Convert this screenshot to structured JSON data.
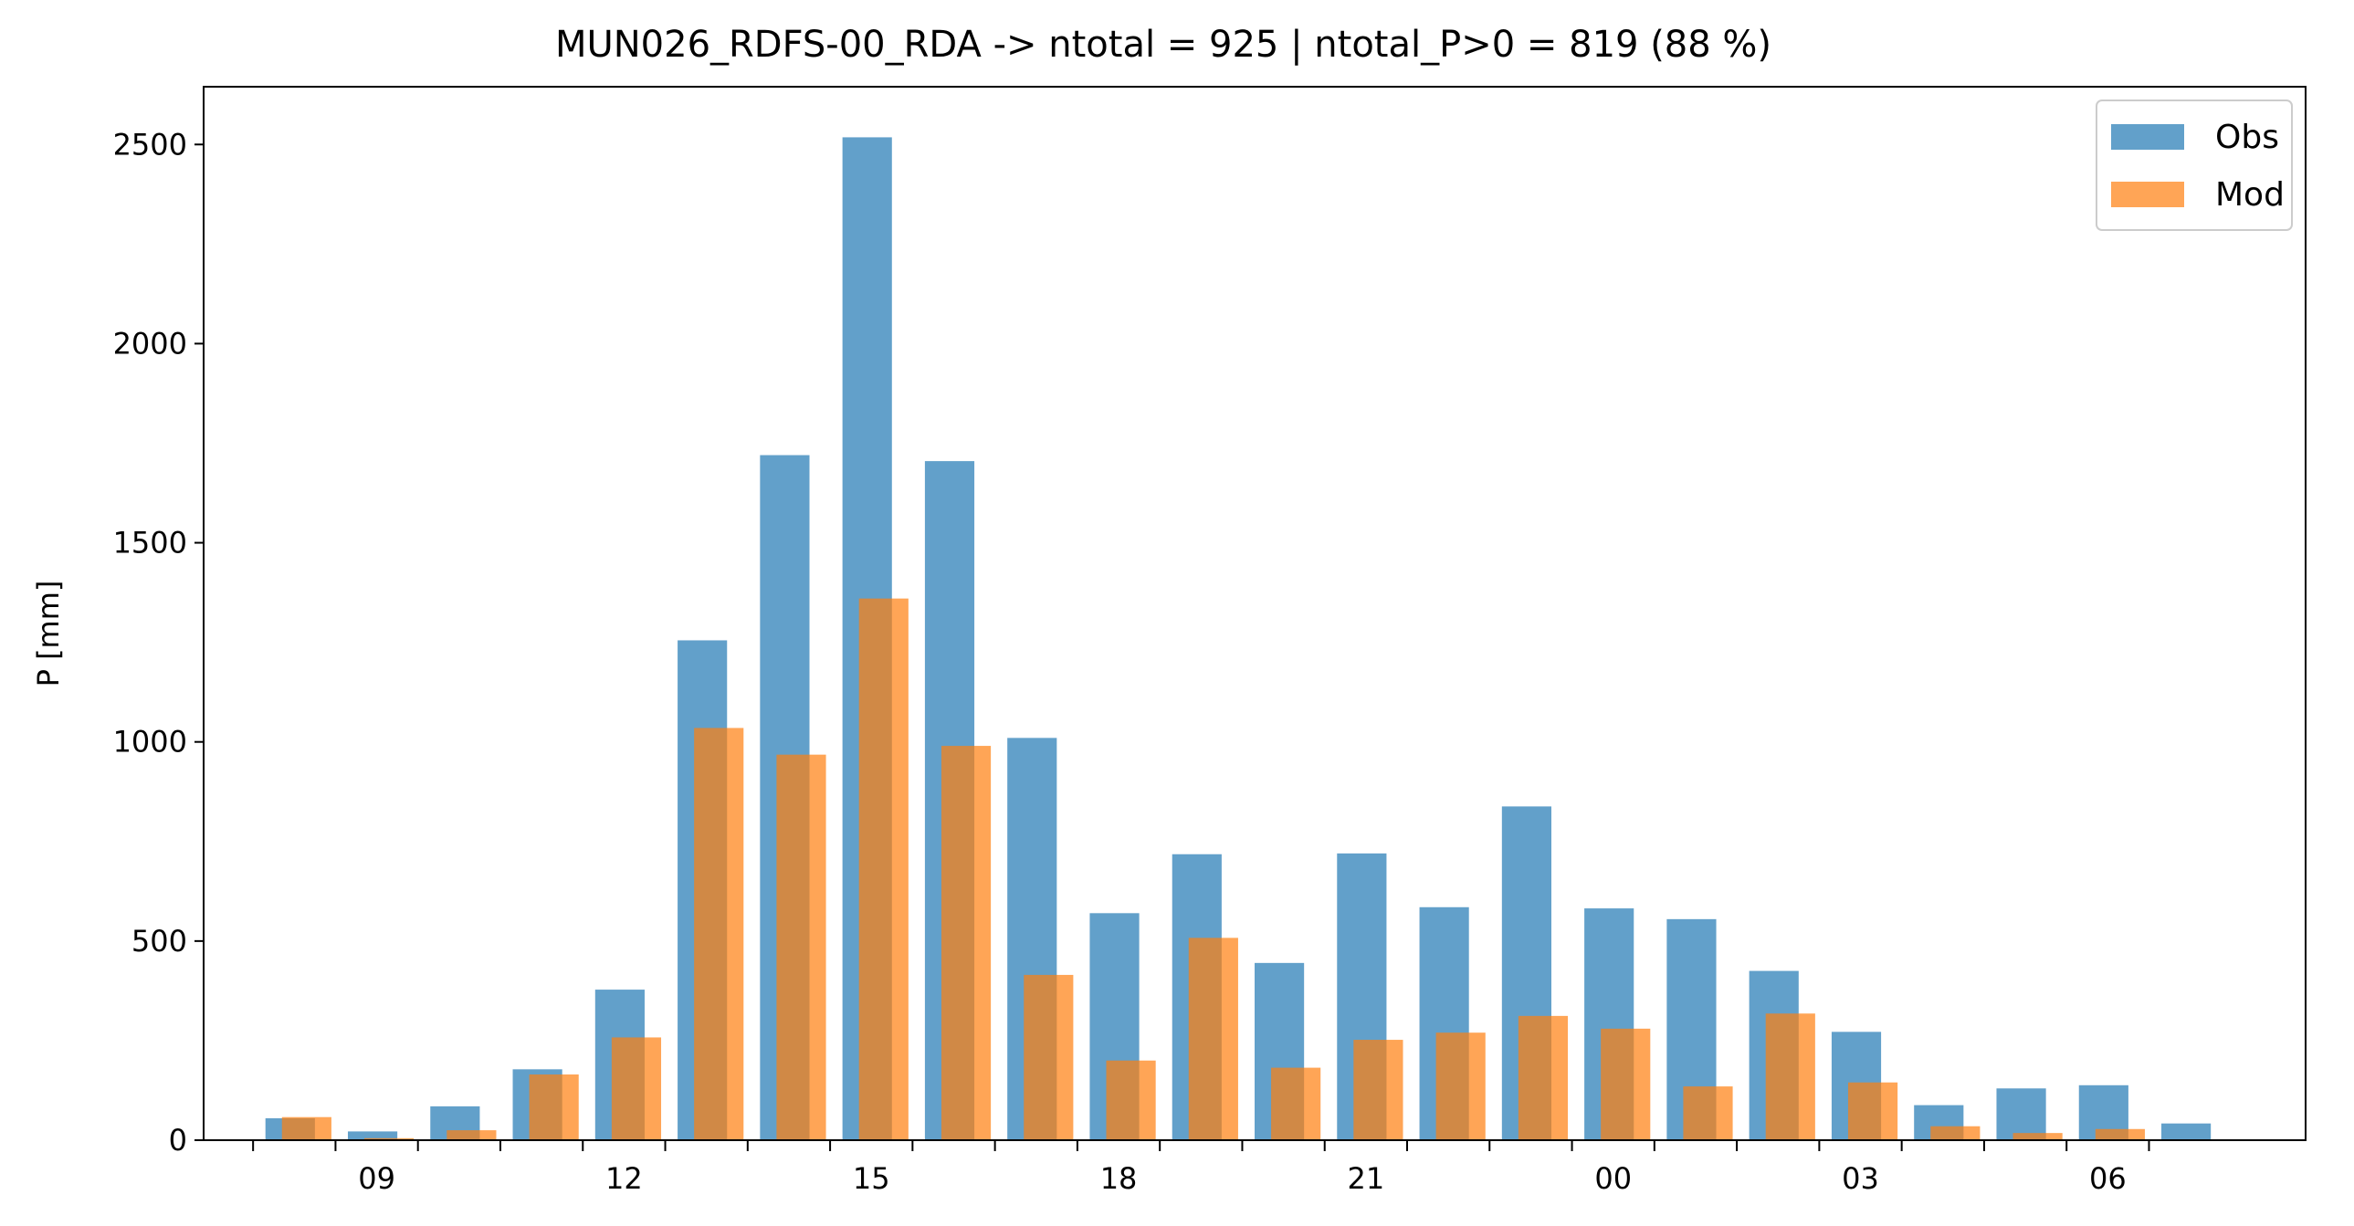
{
  "chart_data": {
    "type": "bar",
    "title": "MUN026_RDFS-00_RDA -> ntotal = 925 | ntotal_P>0 = 819 (88 %)",
    "xlabel": "",
    "ylabel": "P [mm]",
    "x_hours": [
      8,
      9,
      10,
      11,
      12,
      13,
      14,
      15,
      16,
      17,
      18,
      19,
      20,
      21,
      22,
      23,
      24,
      25,
      26,
      27,
      28,
      29,
      30,
      31
    ],
    "series": [
      {
        "name": "Obs",
        "color": "#1f77b4",
        "values": [
          55,
          22,
          85,
          178,
          378,
          1255,
          1720,
          2518,
          1705,
          1010,
          570,
          718,
          445,
          720,
          585,
          838,
          582,
          555,
          425,
          272,
          88,
          130,
          138,
          42
        ]
      },
      {
        "name": "Mod",
        "color": "#ff7f0e",
        "values": [
          58,
          5,
          25,
          165,
          258,
          1035,
          968,
          1360,
          990,
          415,
          200,
          508,
          182,
          252,
          270,
          312,
          280,
          135,
          318,
          145,
          35,
          18,
          28,
          0
        ]
      }
    ],
    "xtick_labels": [
      {
        "hour": 9,
        "label": "09"
      },
      {
        "hour": 12,
        "label": "12"
      },
      {
        "hour": 15,
        "label": "15"
      },
      {
        "hour": 18,
        "label": "18"
      },
      {
        "hour": 21,
        "label": "21"
      },
      {
        "hour": 24,
        "label": "00"
      },
      {
        "hour": 27,
        "label": "03"
      },
      {
        "hour": 30,
        "label": "06"
      }
    ],
    "yticks": [
      0,
      500,
      1000,
      1500,
      2000,
      2500
    ],
    "xlim": [
      6.9,
      32.4
    ],
    "ylim": [
      0,
      2645
    ],
    "legend_position": "top-right",
    "grid": false
  }
}
